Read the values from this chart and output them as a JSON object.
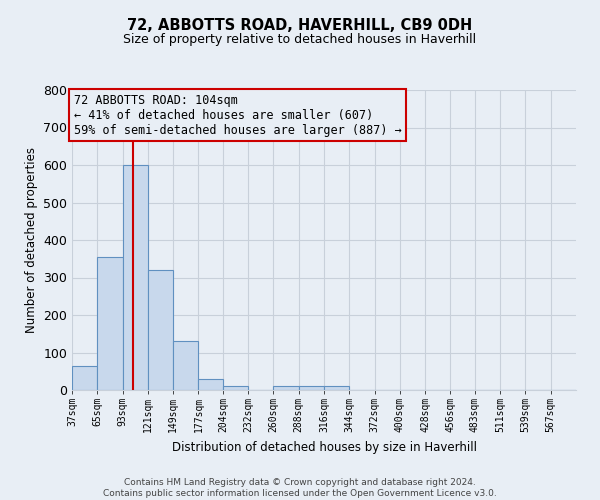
{
  "title": "72, ABBOTTS ROAD, HAVERHILL, CB9 0DH",
  "subtitle": "Size of property relative to detached houses in Haverhill",
  "xlabel": "Distribution of detached houses by size in Haverhill",
  "ylabel": "Number of detached properties",
  "bar_edges": [
    37,
    65,
    93,
    121,
    149,
    177,
    204,
    232,
    260,
    288,
    316,
    344,
    372,
    400,
    428,
    456,
    483,
    511,
    539,
    567,
    595
  ],
  "bar_heights": [
    65,
    355,
    600,
    320,
    130,
    30,
    10,
    0,
    10,
    10,
    10,
    0,
    0,
    0,
    0,
    0,
    0,
    0,
    0,
    0
  ],
  "bar_color": "#c8d8ec",
  "bar_edgecolor": "#6090c0",
  "property_size": 104,
  "property_line_color": "#cc0000",
  "ylim": [
    0,
    800
  ],
  "yticks": [
    0,
    100,
    200,
    300,
    400,
    500,
    600,
    700,
    800
  ],
  "annotation_line1": "72 ABBOTTS ROAD: 104sqm",
  "annotation_line2": "← 41% of detached houses are smaller (607)",
  "annotation_line3": "59% of semi-detached houses are larger (887) →",
  "annotation_box_edgecolor": "#cc0000",
  "footer_line1": "Contains HM Land Registry data © Crown copyright and database right 2024.",
  "footer_line2": "Contains public sector information licensed under the Open Government Licence v3.0.",
  "background_color": "#e8eef5",
  "grid_color": "#c8d0da",
  "plot_bg_color": "#e8eef5"
}
